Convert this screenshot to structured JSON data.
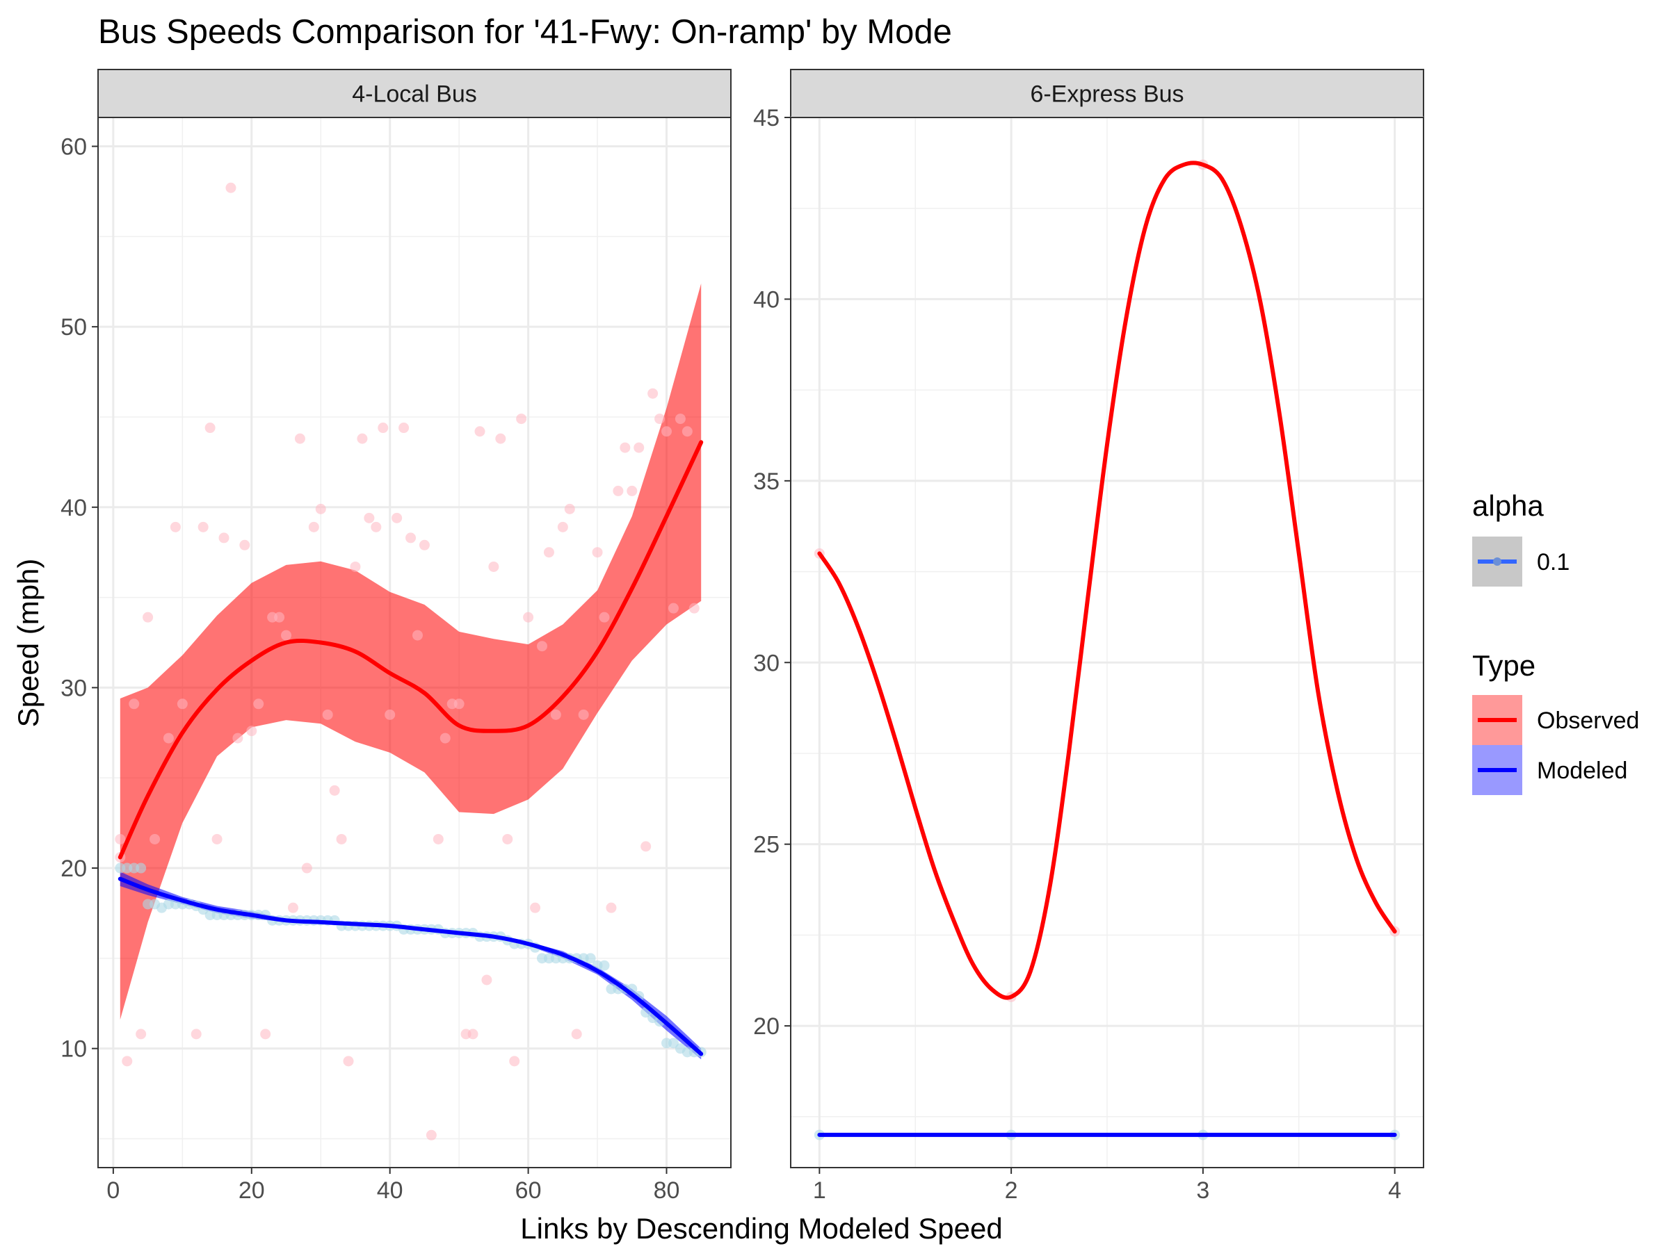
{
  "chart_data": {
    "type": "scatter",
    "title": "Bus Speeds Comparison for '41-Fwy: On-ramp' by Mode",
    "xlabel": "Links by Descending Modeled Speed",
    "ylabel": "Speed (mph)",
    "grid": true,
    "legend_placement": "right",
    "legend": {
      "alpha": {
        "title": "alpha",
        "entries": [
          {
            "label": "0.1",
            "color": "#3366ff"
          }
        ]
      },
      "type": {
        "title": "Type",
        "entries": [
          {
            "label": "Observed",
            "color": "#ff0000",
            "fill": "#ff9999"
          },
          {
            "label": "Modeled",
            "color": "#0000ff",
            "fill": "#9999ff"
          }
        ]
      }
    },
    "panels": [
      {
        "strip": "4-Local Bus",
        "xlim": [
          -2.2,
          89.3
        ],
        "ylim": [
          3.4,
          61.6
        ],
        "x_ticks": [
          0,
          20,
          40,
          60,
          80
        ],
        "y_ticks": [
          10,
          20,
          30,
          40,
          50,
          60
        ],
        "observed_points": [
          [
            1,
            21.6
          ],
          [
            1,
            20.6
          ],
          [
            2,
            9.3
          ],
          [
            3,
            29.1
          ],
          [
            4,
            10.8
          ],
          [
            5,
            33.9
          ],
          [
            6,
            21.6
          ],
          [
            8,
            27.2
          ],
          [
            9,
            38.9
          ],
          [
            10,
            29.1
          ],
          [
            12,
            10.8
          ],
          [
            13,
            38.9
          ],
          [
            14,
            44.4
          ],
          [
            15,
            21.6
          ],
          [
            16,
            38.3
          ],
          [
            17,
            57.7
          ],
          [
            18,
            27.2
          ],
          [
            19,
            37.9
          ],
          [
            20,
            27.6
          ],
          [
            21,
            29.1
          ],
          [
            22,
            10.8
          ],
          [
            23,
            33.9
          ],
          [
            24,
            33.9
          ],
          [
            25,
            32.9
          ],
          [
            26,
            17.8
          ],
          [
            27,
            43.8
          ],
          [
            28,
            20.0
          ],
          [
            29,
            38.9
          ],
          [
            30,
            39.9
          ],
          [
            31,
            28.5
          ],
          [
            32,
            24.3
          ],
          [
            33,
            21.6
          ],
          [
            34,
            9.3
          ],
          [
            35,
            36.7
          ],
          [
            36,
            43.8
          ],
          [
            37,
            39.4
          ],
          [
            38,
            38.9
          ],
          [
            39,
            44.4
          ],
          [
            40,
            28.5
          ],
          [
            41,
            39.4
          ],
          [
            42,
            44.4
          ],
          [
            43,
            38.3
          ],
          [
            44,
            32.9
          ],
          [
            45,
            37.9
          ],
          [
            46,
            5.2
          ],
          [
            47,
            21.6
          ],
          [
            48,
            27.2
          ],
          [
            49,
            29.1
          ],
          [
            50,
            29.1
          ],
          [
            51,
            10.8
          ],
          [
            52,
            10.8
          ],
          [
            53,
            44.2
          ],
          [
            54,
            13.8
          ],
          [
            55,
            36.7
          ],
          [
            56,
            43.8
          ],
          [
            57,
            21.6
          ],
          [
            58,
            9.3
          ],
          [
            59,
            44.9
          ],
          [
            60,
            33.9
          ],
          [
            61,
            17.8
          ],
          [
            62,
            32.3
          ],
          [
            63,
            37.5
          ],
          [
            64,
            28.5
          ],
          [
            65,
            38.9
          ],
          [
            66,
            39.9
          ],
          [
            67,
            10.8
          ],
          [
            68,
            28.5
          ],
          [
            70,
            37.5
          ],
          [
            71,
            33.9
          ],
          [
            72,
            17.8
          ],
          [
            73,
            40.9
          ],
          [
            74,
            43.3
          ],
          [
            75,
            40.9
          ],
          [
            76,
            43.3
          ],
          [
            77,
            21.2
          ],
          [
            78,
            46.3
          ],
          [
            79,
            44.9
          ],
          [
            80,
            44.2
          ],
          [
            81,
            34.4
          ],
          [
            82,
            44.9
          ],
          [
            83,
            44.2
          ],
          [
            84,
            34.4
          ]
        ],
        "modeled_points": [
          [
            1,
            20.0
          ],
          [
            2,
            20.0
          ],
          [
            3,
            20.0
          ],
          [
            4,
            20.0
          ],
          [
            5,
            18.0
          ],
          [
            6,
            18.0
          ],
          [
            7,
            17.8
          ],
          [
            8,
            18.0
          ],
          [
            9,
            18.0
          ],
          [
            10,
            18.0
          ],
          [
            11,
            18.0
          ],
          [
            12,
            17.9
          ],
          [
            13,
            17.7
          ],
          [
            14,
            17.4
          ],
          [
            15,
            17.4
          ],
          [
            16,
            17.4
          ],
          [
            17,
            17.4
          ],
          [
            18,
            17.4
          ],
          [
            19,
            17.4
          ],
          [
            20,
            17.4
          ],
          [
            21,
            17.4
          ],
          [
            22,
            17.4
          ],
          [
            23,
            17.1
          ],
          [
            24,
            17.1
          ],
          [
            25,
            17.1
          ],
          [
            26,
            17.1
          ],
          [
            27,
            17.1
          ],
          [
            28,
            17.1
          ],
          [
            29,
            17.1
          ],
          [
            30,
            17.1
          ],
          [
            31,
            17.1
          ],
          [
            32,
            17.1
          ],
          [
            33,
            16.8
          ],
          [
            34,
            16.8
          ],
          [
            35,
            16.8
          ],
          [
            36,
            16.8
          ],
          [
            37,
            16.8
          ],
          [
            38,
            16.8
          ],
          [
            39,
            16.8
          ],
          [
            40,
            16.8
          ],
          [
            41,
            16.8
          ],
          [
            42,
            16.6
          ],
          [
            43,
            16.6
          ],
          [
            44,
            16.6
          ],
          [
            45,
            16.6
          ],
          [
            46,
            16.6
          ],
          [
            47,
            16.6
          ],
          [
            48,
            16.4
          ],
          [
            49,
            16.4
          ],
          [
            50,
            16.4
          ],
          [
            51,
            16.4
          ],
          [
            52,
            16.4
          ],
          [
            53,
            16.2
          ],
          [
            54,
            16.2
          ],
          [
            55,
            16.2
          ],
          [
            56,
            16.2
          ],
          [
            57,
            16.0
          ],
          [
            58,
            15.8
          ],
          [
            59,
            15.8
          ],
          [
            60,
            15.8
          ],
          [
            61,
            15.6
          ],
          [
            62,
            15.0
          ],
          [
            63,
            15.0
          ],
          [
            64,
            15.0
          ],
          [
            65,
            15.0
          ],
          [
            66,
            15.0
          ],
          [
            67,
            15.0
          ],
          [
            68,
            15.0
          ],
          [
            69,
            15.0
          ],
          [
            70,
            14.6
          ],
          [
            71,
            14.6
          ],
          [
            72,
            13.3
          ],
          [
            73,
            13.3
          ],
          [
            74,
            13.3
          ],
          [
            75,
            13.3
          ],
          [
            76,
            12.9
          ],
          [
            77,
            12.0
          ],
          [
            78,
            11.7
          ],
          [
            79,
            11.5
          ],
          [
            80,
            10.3
          ],
          [
            81,
            10.3
          ],
          [
            82,
            10.0
          ],
          [
            83,
            9.8
          ],
          [
            84,
            9.8
          ],
          [
            85,
            9.8
          ]
        ],
        "observed_smooth": {
          "x": [
            1,
            5,
            10,
            15,
            20,
            25,
            30,
            35,
            40,
            45,
            50,
            55,
            60,
            65,
            70,
            75,
            80,
            85
          ],
          "y": [
            20.6,
            24.0,
            27.5,
            29.9,
            31.5,
            32.5,
            32.5,
            32.0,
            30.8,
            29.7,
            27.9,
            27.6,
            27.9,
            29.5,
            32.0,
            35.5,
            39.5,
            43.6
          ],
          "lower": [
            11.6,
            17.0,
            22.5,
            26.2,
            27.8,
            28.2,
            28.0,
            27.0,
            26.4,
            25.3,
            23.1,
            23.0,
            23.8,
            25.5,
            28.6,
            31.5,
            33.5,
            34.8
          ],
          "upper": [
            29.4,
            30.0,
            31.8,
            34.0,
            35.8,
            36.8,
            37.0,
            36.5,
            35.3,
            34.6,
            33.1,
            32.7,
            32.4,
            33.5,
            35.4,
            39.5,
            45.5,
            52.4
          ]
        },
        "modeled_smooth": {
          "x": [
            1,
            5,
            10,
            15,
            20,
            25,
            30,
            35,
            40,
            45,
            50,
            55,
            60,
            65,
            70,
            75,
            80,
            85
          ],
          "y": [
            19.4,
            18.8,
            18.2,
            17.7,
            17.4,
            17.1,
            17.0,
            16.9,
            16.8,
            16.6,
            16.4,
            16.2,
            15.8,
            15.2,
            14.3,
            13.0,
            11.4,
            9.7
          ],
          "lower": [
            19.0,
            18.5,
            18.0,
            17.5,
            17.2,
            17.0,
            16.9,
            16.8,
            16.7,
            16.5,
            16.3,
            16.1,
            15.7,
            15.0,
            14.1,
            12.7,
            11.0,
            9.4
          ],
          "upper": [
            19.8,
            19.1,
            18.4,
            17.9,
            17.6,
            17.2,
            17.1,
            17.0,
            16.9,
            16.7,
            16.5,
            16.3,
            15.9,
            15.4,
            14.5,
            13.3,
            11.8,
            10.0
          ]
        }
      },
      {
        "strip": "6-Express Bus",
        "xlim": [
          0.85,
          4.15
        ],
        "ylim": [
          16.1,
          45.0
        ],
        "x_ticks": [
          1,
          2,
          3,
          4
        ],
        "y_ticks": [
          20,
          25,
          30,
          35,
          40,
          45
        ],
        "observed_points": [
          [
            1,
            33.0
          ],
          [
            2,
            20.8
          ],
          [
            3,
            43.7
          ],
          [
            4,
            22.6
          ]
        ],
        "modeled_points": [
          [
            1,
            17.0
          ],
          [
            2,
            17.0
          ],
          [
            3,
            17.0
          ],
          [
            4,
            17.0
          ]
        ],
        "observed_smooth": {
          "x": [
            1,
            1.1,
            1.2,
            1.3,
            1.4,
            1.5,
            1.6,
            1.7,
            1.8,
            1.9,
            2.0,
            2.1,
            2.2,
            2.3,
            2.4,
            2.5,
            2.6,
            2.7,
            2.8,
            2.9,
            3.0,
            3.1,
            3.2,
            3.3,
            3.4,
            3.5,
            3.6,
            3.7,
            3.8,
            3.9,
            4.0
          ],
          "y": [
            33.0,
            32.2,
            31.0,
            29.5,
            27.8,
            26.0,
            24.3,
            22.9,
            21.7,
            21.0,
            20.8,
            21.5,
            23.8,
            27.5,
            31.8,
            36.0,
            39.5,
            42.0,
            43.3,
            43.7,
            43.7,
            43.3,
            42.0,
            39.9,
            36.8,
            33.0,
            29.2,
            26.5,
            24.6,
            23.4,
            22.6
          ]
        },
        "modeled_smooth": {
          "x": [
            1,
            4
          ],
          "y": [
            17.0,
            17.0
          ]
        }
      }
    ]
  }
}
